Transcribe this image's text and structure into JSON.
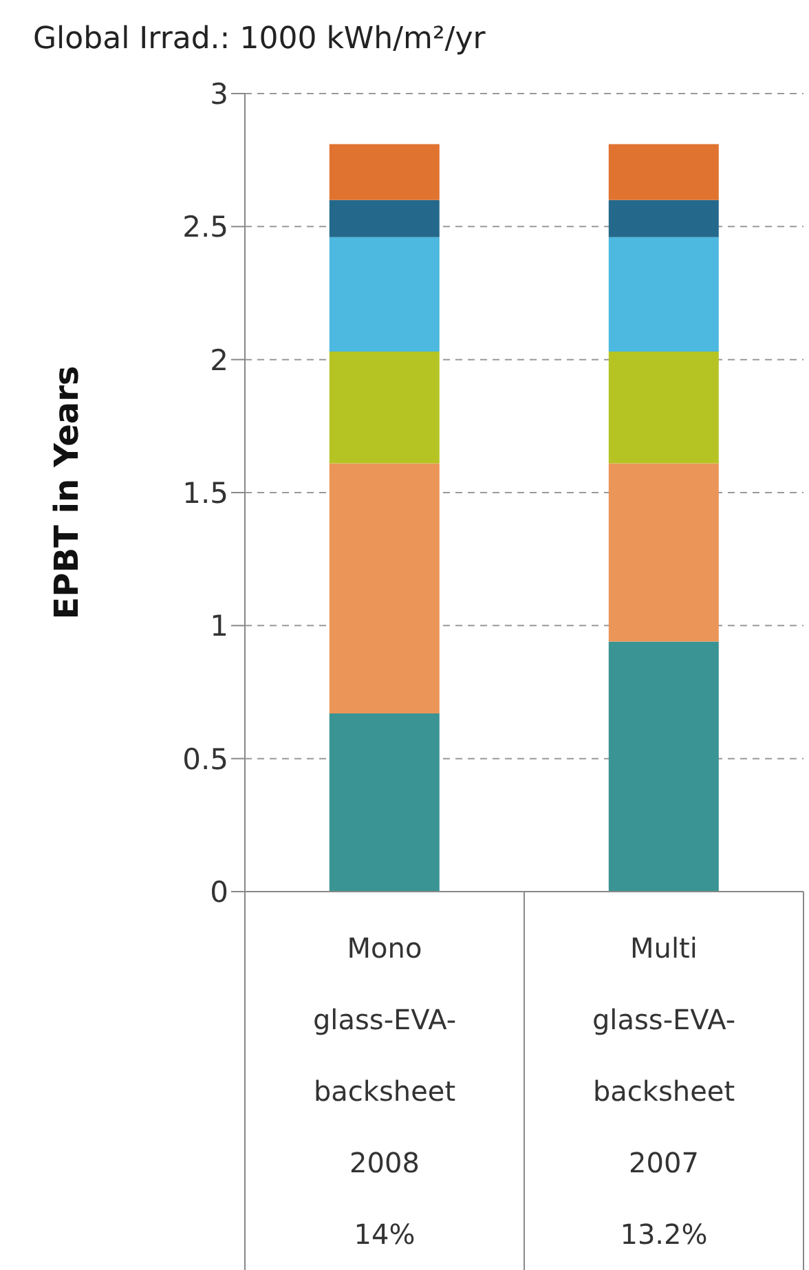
{
  "chart_data": {
    "type": "bar",
    "title": "Global Irrad.: 1000 kWh/m²/yr",
    "ylabel": "EPBT in Years",
    "categories": [
      "Mono\nglass-EVA-\nbacksheet\n2008\n14%",
      "Multi\nglass-EVA-\nbacksheet\n2007\n13.2%"
    ],
    "stacked": true,
    "series": [
      {
        "color": "#3a9494",
        "values": [
          0.67,
          0.94
        ]
      },
      {
        "color": "#eb9558",
        "values": [
          0.94,
          0.67
        ]
      },
      {
        "color": "#b5c423",
        "values": [
          0.42,
          0.42
        ]
      },
      {
        "color": "#4db8e0",
        "values": [
          0.43,
          0.43
        ]
      },
      {
        "color": "#24698c",
        "values": [
          0.14,
          0.14
        ]
      },
      {
        "color": "#e07330",
        "values": [
          0.21,
          0.21
        ]
      }
    ],
    "ylim": [
      0,
      3
    ],
    "yticks": [
      0,
      0.5,
      1,
      1.5,
      2,
      2.5,
      3
    ],
    "grid": "y"
  }
}
